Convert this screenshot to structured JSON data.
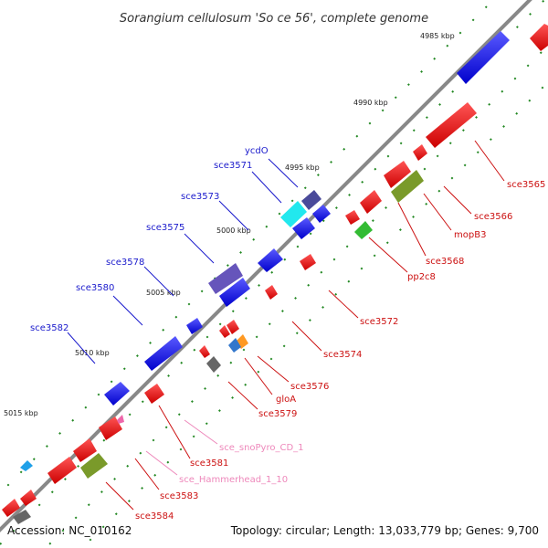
{
  "title": "Sorangium cellulosum 'So ce 56', complete genome",
  "footer": {
    "accession": "Accession: NC_010162",
    "topology": "Topology: circular; Length: 13,033,779 bp; Genes: 9,700"
  },
  "scale_labels": [
    "4985 kbp",
    "4990 kbp",
    "4995 kbp",
    "5000 kbp",
    "5005 kbp",
    "5010 kbp",
    "5015 kbp"
  ],
  "genes_top": [
    "ycdO",
    "sce3571",
    "sce3573",
    "sce3575",
    "sce3578",
    "sce3580",
    "sce3582"
  ],
  "genes_bottom": [
    "sce3565",
    "sce3566",
    "mopB3",
    "sce3568",
    "pp2c8",
    "sce3572",
    "sce3574",
    "sce3576",
    "gloA",
    "sce3579",
    "sce_snoPyro_CD_1",
    "sce3581",
    "sce_Hammerhead_1_10",
    "sce3583",
    "sce3584"
  ],
  "colors": {
    "forward": "#1a1ae6",
    "reverse": "#ee1111",
    "backbone": "#888888",
    "tick": "#228822",
    "ncrna_label": "#ee88bb",
    "olive": "#7a9a2a",
    "cyan": "#22e8ee",
    "slate": "#4a4a9a",
    "green": "#33bb33",
    "orange": "#ff9922",
    "grey": "#666666"
  }
}
